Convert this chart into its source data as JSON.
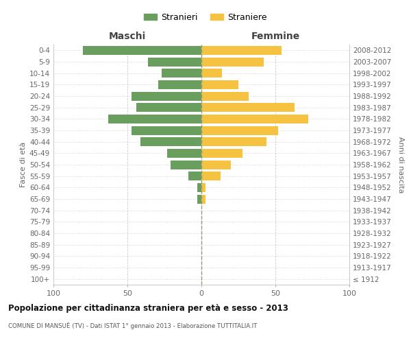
{
  "age_groups": [
    "100+",
    "95-99",
    "90-94",
    "85-89",
    "80-84",
    "75-79",
    "70-74",
    "65-69",
    "60-64",
    "55-59",
    "50-54",
    "45-49",
    "40-44",
    "35-39",
    "30-34",
    "25-29",
    "20-24",
    "15-19",
    "10-14",
    "5-9",
    "0-4"
  ],
  "birth_years": [
    "≤ 1912",
    "1913-1917",
    "1918-1922",
    "1923-1927",
    "1928-1932",
    "1933-1937",
    "1938-1942",
    "1943-1947",
    "1948-1952",
    "1953-1957",
    "1958-1962",
    "1963-1967",
    "1968-1972",
    "1973-1977",
    "1978-1982",
    "1983-1987",
    "1988-1992",
    "1993-1997",
    "1998-2002",
    "2003-2007",
    "2008-2012"
  ],
  "maschi": [
    0,
    0,
    0,
    0,
    0,
    0,
    0,
    3,
    3,
    9,
    21,
    23,
    41,
    47,
    63,
    44,
    47,
    29,
    27,
    36,
    80
  ],
  "femmine": [
    0,
    0,
    0,
    0,
    0,
    0,
    0,
    3,
    3,
    13,
    20,
    28,
    44,
    52,
    72,
    63,
    32,
    25,
    14,
    42,
    54
  ],
  "maschi_color": "#6a9e5e",
  "femmine_color": "#f5c242",
  "background_color": "#ffffff",
  "grid_color": "#cccccc",
  "zero_line_color": "#888866",
  "title": "Popolazione per cittadinanza straniera per età e sesso - 2013",
  "subtitle": "COMUNE DI MANSUÈ (TV) - Dati ISTAT 1° gennaio 2013 - Elaborazione TUTTITALIA.IT",
  "ylabel_left": "Fasce di età",
  "ylabel_right": "Anni di nascita",
  "header_left": "Maschi",
  "header_right": "Femmine",
  "legend_maschi": "Stranieri",
  "legend_femmine": "Straniere",
  "xlim": 100,
  "dpi": 100,
  "figwidth": 6.0,
  "figheight": 5.0
}
